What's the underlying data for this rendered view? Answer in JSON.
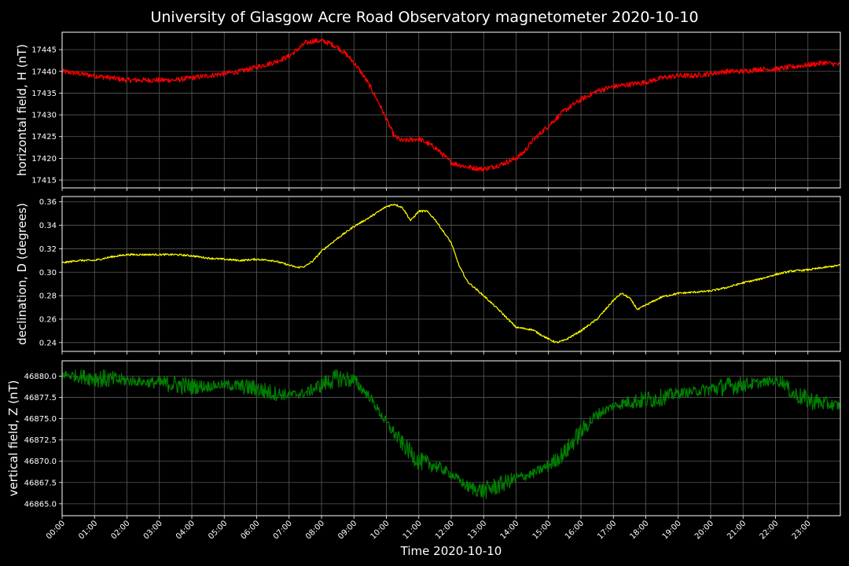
{
  "title": "University of Glasgow Acre Road Observatory magnetometer 2020-10-10",
  "xlabel": "Time 2020-10-10",
  "chart_data": {
    "type": "line",
    "x_axis": {
      "unit": "hours",
      "range": [
        0,
        24
      ],
      "tick_labels": [
        "00:00",
        "01:00",
        "02:00",
        "03:00",
        "04:00",
        "05:00",
        "06:00",
        "07:00",
        "08:00",
        "09:00",
        "10:00",
        "11:00",
        "12:00",
        "13:00",
        "14:00",
        "15:00",
        "16:00",
        "17:00",
        "18:00",
        "19:00",
        "20:00",
        "21:00",
        "22:00",
        "23:00"
      ]
    },
    "grid": true,
    "panels": [
      {
        "id": "H",
        "ylabel": "horizontal field, H (nT)",
        "color": "#ff0000",
        "ylim": [
          17413.2,
          17449.0
        ],
        "yticks": [
          17415,
          17420,
          17425,
          17430,
          17435,
          17440,
          17445
        ],
        "ytick_labels": [
          "17415",
          "17420",
          "17425",
          "17430",
          "17435",
          "17440",
          "17445"
        ],
        "noise": 0.6,
        "x": [
          0,
          0.5,
          1,
          1.5,
          2,
          2.5,
          3,
          3.5,
          4,
          4.5,
          5,
          5.5,
          6,
          6.5,
          7,
          7.25,
          7.5,
          7.75,
          8,
          8.25,
          8.5,
          8.75,
          9,
          9.25,
          9.5,
          9.75,
          10,
          10.25,
          10.5,
          11,
          11.5,
          12,
          12.5,
          13,
          13.5,
          14,
          14.25,
          14.5,
          15,
          15.5,
          16,
          16.5,
          17,
          17.5,
          18,
          18.5,
          19,
          19.5,
          20,
          20.5,
          21,
          21.5,
          22,
          22.5,
          23,
          23.5,
          24
        ],
        "y": [
          17440,
          17439.5,
          17439,
          17438.5,
          17438,
          17438,
          17438,
          17438,
          17438.5,
          17439,
          17439.5,
          17440,
          17441,
          17442,
          17443.5,
          17445,
          17446.5,
          17447,
          17447,
          17446.5,
          17445.5,
          17444,
          17442,
          17439.5,
          17436.5,
          17433,
          17429,
          17425,
          17424,
          17424.5,
          17422.5,
          17419,
          17418,
          17417.5,
          17418.5,
          17420,
          17421.5,
          17424,
          17427.5,
          17431,
          17433.5,
          17435.5,
          17436.5,
          17437,
          17437.5,
          17438.5,
          17439,
          17439,
          17439.5,
          17440,
          17440,
          17440.5,
          17440.5,
          17441,
          17441.5,
          17442,
          17441.5
        ]
      },
      {
        "id": "D",
        "ylabel": "declination, D (degrees)",
        "color": "#ffff00",
        "ylim": [
          0.2325,
          0.3645
        ],
        "yticks": [
          0.24,
          0.26,
          0.28,
          0.3,
          0.32,
          0.34,
          0.36
        ],
        "ytick_labels": [
          "0.24",
          "0.26",
          "0.28",
          "0.30",
          "0.32",
          "0.34",
          "0.36"
        ],
        "noise": 0.0008,
        "x": [
          0,
          0.5,
          1,
          1.5,
          2,
          2.5,
          3,
          3.5,
          4,
          4.5,
          5,
          5.5,
          6,
          6.5,
          7,
          7.25,
          7.5,
          7.75,
          8,
          8.5,
          9,
          9.5,
          10,
          10.25,
          10.5,
          10.75,
          11,
          11.25,
          11.5,
          12,
          12.25,
          12.5,
          13,
          13.5,
          14,
          14.5,
          15,
          15.25,
          15.5,
          16,
          16.5,
          17,
          17.25,
          17.5,
          17.75,
          18,
          18.5,
          19,
          19.5,
          20,
          20.5,
          21,
          21.5,
          22,
          22.5,
          23,
          23.5,
          24
        ],
        "y": [
          0.308,
          0.31,
          0.31,
          0.313,
          0.315,
          0.315,
          0.315,
          0.315,
          0.314,
          0.312,
          0.311,
          0.31,
          0.311,
          0.31,
          0.306,
          0.304,
          0.305,
          0.31,
          0.318,
          0.329,
          0.339,
          0.347,
          0.356,
          0.358,
          0.355,
          0.344,
          0.352,
          0.352,
          0.345,
          0.325,
          0.305,
          0.292,
          0.28,
          0.267,
          0.253,
          0.251,
          0.243,
          0.24,
          0.242,
          0.25,
          0.26,
          0.276,
          0.282,
          0.278,
          0.268,
          0.272,
          0.279,
          0.282,
          0.283,
          0.284,
          0.287,
          0.291,
          0.294,
          0.298,
          0.301,
          0.302,
          0.304,
          0.306
        ]
      },
      {
        "id": "Z",
        "ylabel": "vertical field, Z (nT)",
        "color": "#008000",
        "ylim": [
          46863.6,
          46881.8
        ],
        "yticks": [
          46865.0,
          46867.5,
          46870.0,
          46872.5,
          46875.0,
          46877.5,
          46880.0
        ],
        "ytick_labels": [
          "46865.0",
          "46867.5",
          "46870.0",
          "46872.5",
          "46875.0",
          "46877.5",
          "46880.0"
        ],
        "noise": 1.1,
        "x": [
          0,
          0.5,
          1,
          1.5,
          2,
          2.5,
          3,
          3.5,
          4,
          4.5,
          5,
          5.5,
          6,
          6.5,
          7,
          7.5,
          8,
          8.5,
          9,
          9.5,
          10,
          10.5,
          11,
          11.5,
          12,
          12.5,
          13,
          13.5,
          14,
          14.5,
          15,
          15.5,
          16,
          16.5,
          17,
          17.5,
          18,
          18.5,
          19,
          19.5,
          20,
          20.5,
          21,
          21.5,
          22,
          22.25,
          22.5,
          23,
          23.5,
          24
        ],
        "y": [
          46880.2,
          46880,
          46879.8,
          46879.6,
          46879.5,
          46879.3,
          46879.2,
          46879,
          46878.8,
          46878.8,
          46879,
          46878.8,
          46878.5,
          46878,
          46877.8,
          46878,
          46879,
          46879.8,
          46879.5,
          46877.5,
          46874.5,
          46872,
          46870,
          46869.5,
          46868.5,
          46867,
          46866.5,
          46867.2,
          46868,
          46868.5,
          46869.5,
          46871,
          46873.5,
          46875.5,
          46876.5,
          46877,
          46877.2,
          46877.5,
          46878,
          46878.2,
          46878.5,
          46878.8,
          46879,
          46879.2,
          46879.5,
          46879.3,
          46878,
          46877.2,
          46876.8,
          46876.5
        ]
      }
    ]
  }
}
